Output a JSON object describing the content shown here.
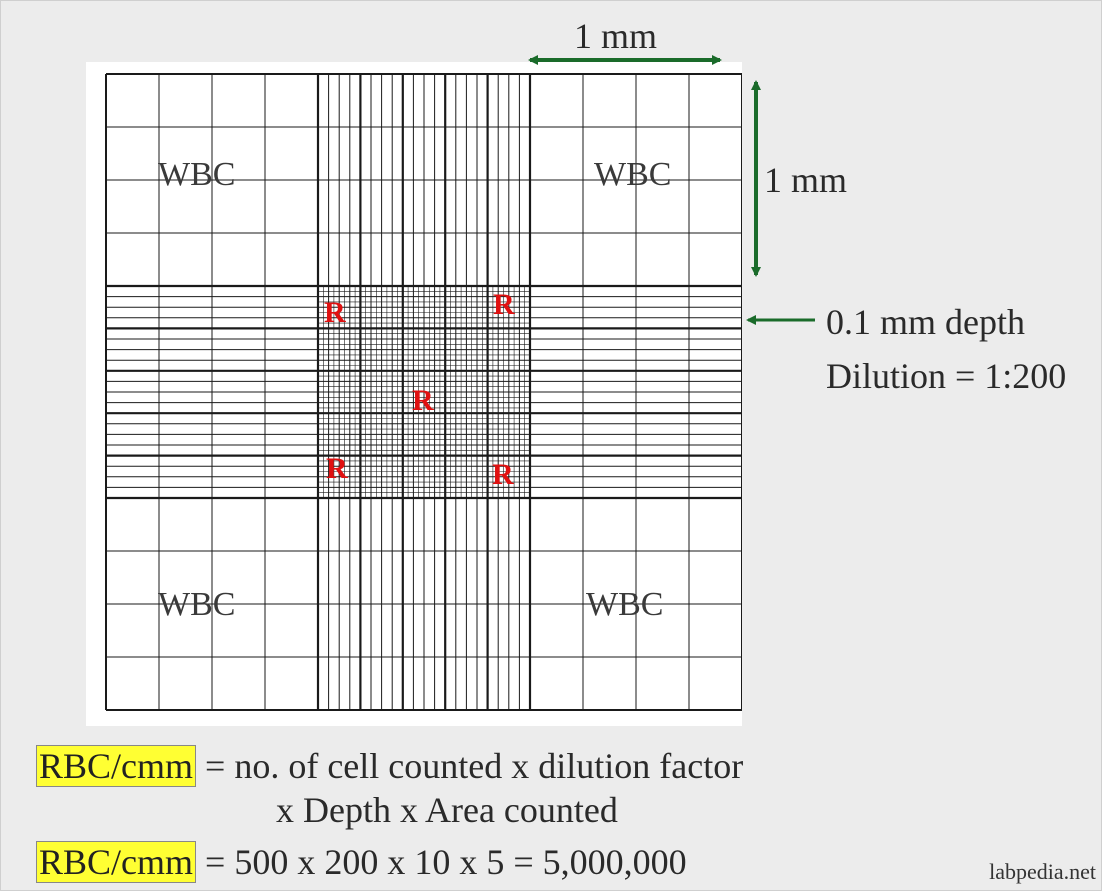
{
  "diagram": {
    "square_labels": [
      "WBC",
      "WBC",
      "WBC",
      "WBC"
    ],
    "center_marks": [
      "R",
      "R",
      "R",
      "R",
      "R"
    ],
    "dim_horizontal": "1 mm",
    "dim_vertical": "1 mm",
    "depth_label": "0.1 mm depth",
    "dilution_label": "Dilution = 1:200"
  },
  "formulas": [
    {
      "highlight": "RBC/cmm",
      "text": "= no. of cell counted x dilution factor",
      "continuation": "x Depth x Area counted"
    },
    {
      "highlight": "RBC/cmm",
      "text": "= 500 x 200 x 10 x 5 = 5,000,000"
    }
  ],
  "watermark": "labpedia.net",
  "colors": {
    "arrow": "#1a6b2a",
    "mark": "#e01010",
    "highlight": "#ffff33"
  }
}
